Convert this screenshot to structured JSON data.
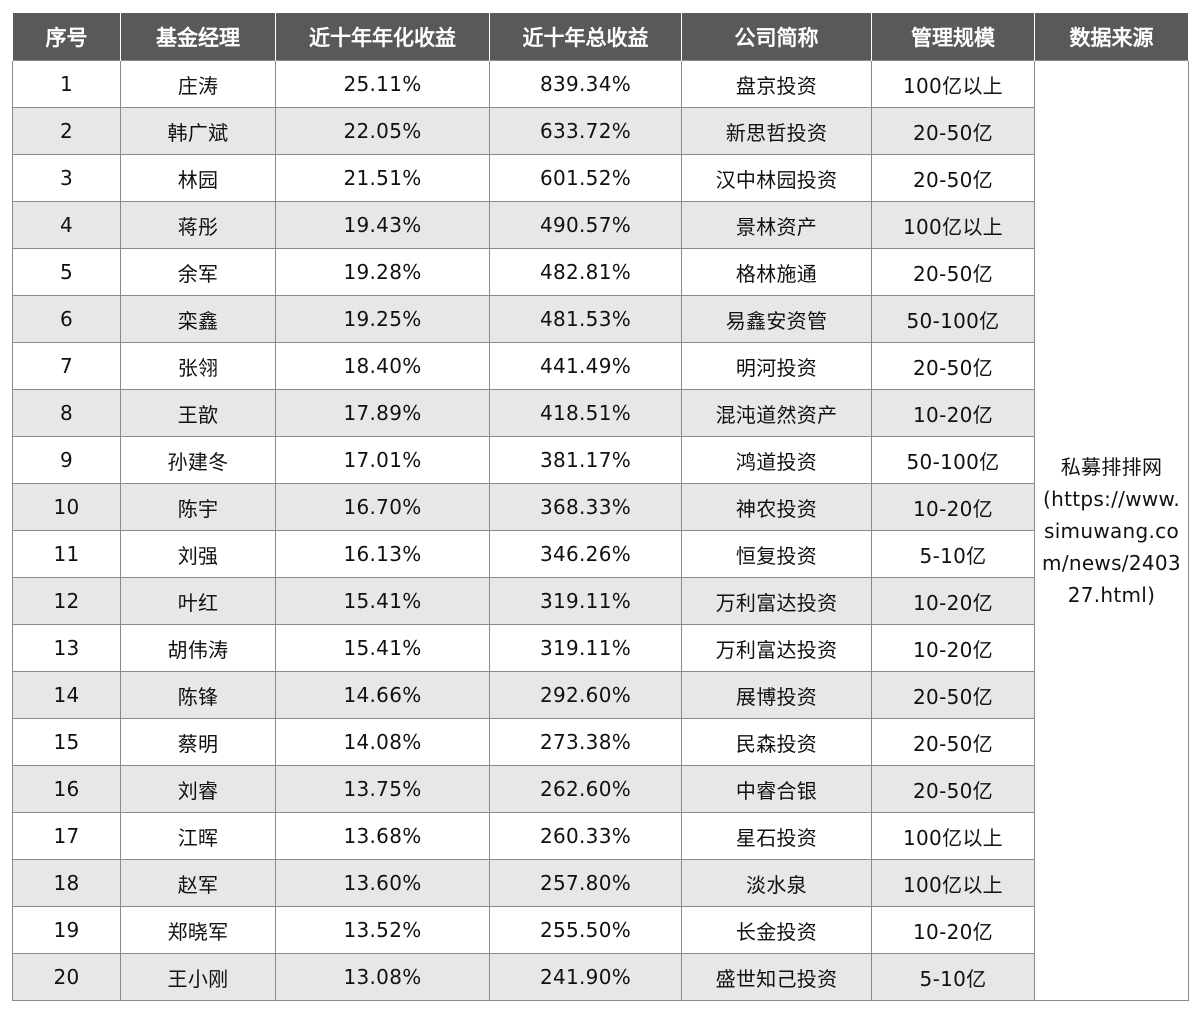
{
  "headers": [
    "序号",
    "基金经理",
    "近十年年化收益",
    "近十年总收益",
    "公司简称",
    "管理规模",
    "数据来源"
  ],
  "rows": [
    [
      "1",
      "庄涛",
      "25.11%",
      "839.34%",
      "盘京投资",
      "100亿以上"
    ],
    [
      "2",
      "韩广斌",
      "22.05%",
      "633.72%",
      "新思哲投资",
      "20-50亿"
    ],
    [
      "3",
      "林园",
      "21.51%",
      "601.52%",
      "汉中林园投资",
      "20-50亿"
    ],
    [
      "4",
      "蒋彤",
      "19.43%",
      "490.57%",
      "景林资产",
      "100亿以上"
    ],
    [
      "5",
      "余军",
      "19.28%",
      "482.81%",
      "格林施通",
      "20-50亿"
    ],
    [
      "6",
      "栾鑫",
      "19.25%",
      "481.53%",
      "易鑫安资管",
      "50-100亿"
    ],
    [
      "7",
      "张翎",
      "18.40%",
      "441.49%",
      "明河投资",
      "20-50亿"
    ],
    [
      "8",
      "王歆",
      "17.89%",
      "418.51%",
      "混沌道然资产",
      "10-20亿"
    ],
    [
      "9",
      "孙建冬",
      "17.01%",
      "381.17%",
      "鸿道投资",
      "50-100亿"
    ],
    [
      "10",
      "陈宇",
      "16.70%",
      "368.33%",
      "神农投资",
      "10-20亿"
    ],
    [
      "11",
      "刘强",
      "16.13%",
      "346.26%",
      "恒复投资",
      "5-10亿"
    ],
    [
      "12",
      "叶红",
      "15.41%",
      "319.11%",
      "万利富达投资",
      "10-20亿"
    ],
    [
      "13",
      "胡伟涛",
      "15.41%",
      "319.11%",
      "万利富达投资",
      "10-20亿"
    ],
    [
      "14",
      "陈锋",
      "14.66%",
      "292.60%",
      "展博投资",
      "20-50亿"
    ],
    [
      "15",
      "蔡明",
      "14.08%",
      "273.38%",
      "民森投资",
      "20-50亿"
    ],
    [
      "16",
      "刘睿",
      "13.75%",
      "262.60%",
      "中睿合银",
      "20-50亿"
    ],
    [
      "17",
      "江晖",
      "13.68%",
      "260.33%",
      "星石投资",
      "100亿以上"
    ],
    [
      "18",
      "赵军",
      "13.60%",
      "257.80%",
      "淡水泉",
      "100亿以上"
    ],
    [
      "19",
      "郑晓军",
      "13.52%",
      "255.50%",
      "长金投资",
      "10-20亿"
    ],
    [
      "20",
      "王小刚",
      "13.08%",
      "241.90%",
      "盛世知己投资",
      "5-10亿"
    ]
  ],
  "source": {
    "name": "私募排排网",
    "link": "(https://www.simuwang.com/news/240327.html)"
  }
}
